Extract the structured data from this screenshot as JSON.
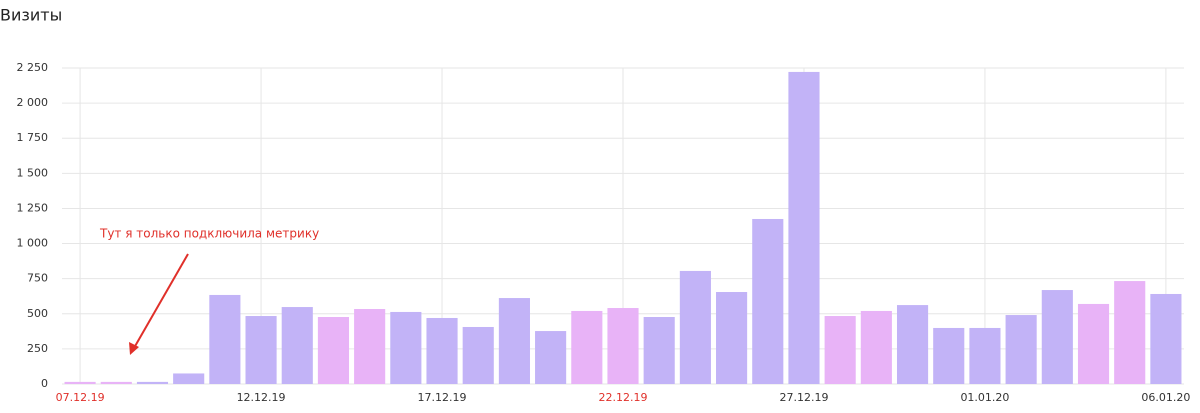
{
  "chart_data": {
    "type": "bar",
    "title": "Визиты",
    "categories": [
      "07.12.19",
      null,
      null,
      null,
      null,
      "12.12.19",
      null,
      null,
      null,
      null,
      "17.12.19",
      null,
      null,
      null,
      null,
      "22.12.19",
      null,
      null,
      null,
      null,
      "27.12.19",
      null,
      null,
      null,
      null,
      "01.01.20",
      null,
      null,
      null,
      null,
      "06.01.20"
    ],
    "values": [
      15,
      15,
      15,
      75,
      634,
      484,
      548,
      477,
      534,
      513,
      470,
      406,
      612,
      377,
      520,
      541,
      477,
      805,
      655,
      1175,
      2222,
      484,
      520,
      562,
      399,
      399,
      491,
      669,
      570,
      733,
      641
    ],
    "color": "#c2b3f7",
    "colors": [
      "#e8b3f7",
      "#e8b3f7",
      "#c2b3f7",
      "#c2b3f7",
      "#c2b3f7",
      "#c2b3f7",
      "#c2b3f7",
      "#e8b3f7",
      "#e8b3f7",
      "#c2b3f7",
      "#c2b3f7",
      "#c2b3f7",
      "#c2b3f7",
      "#c2b3f7",
      "#e8b3f7",
      "#e8b3f7",
      "#c2b3f7",
      "#c2b3f7",
      "#c2b3f7",
      "#c2b3f7",
      "#c2b3f7",
      "#e8b3f7",
      "#e8b3f7",
      "#c2b3f7",
      "#c2b3f7",
      "#c2b3f7",
      "#c2b3f7",
      "#c2b3f7",
      "#e8b3f7",
      "#e8b3f7",
      "#c2b3f7"
    ],
    "weekend_label_color": "#e0302a",
    "ylim": [
      0,
      2250
    ],
    "yticks": [
      0,
      250,
      500,
      750,
      {
        "value": 1000,
        "label": "1 000"
      },
      {
        "value": 1250,
        "label": "1 250"
      },
      {
        "value": 1500,
        "label": "1 500"
      },
      {
        "value": 1750,
        "label": "1 750"
      },
      {
        "value": 2000,
        "label": "2 000"
      },
      {
        "value": 2250,
        "label": "2 250"
      }
    ],
    "grid": true,
    "annotation": "Тут я только подключила метрику"
  }
}
